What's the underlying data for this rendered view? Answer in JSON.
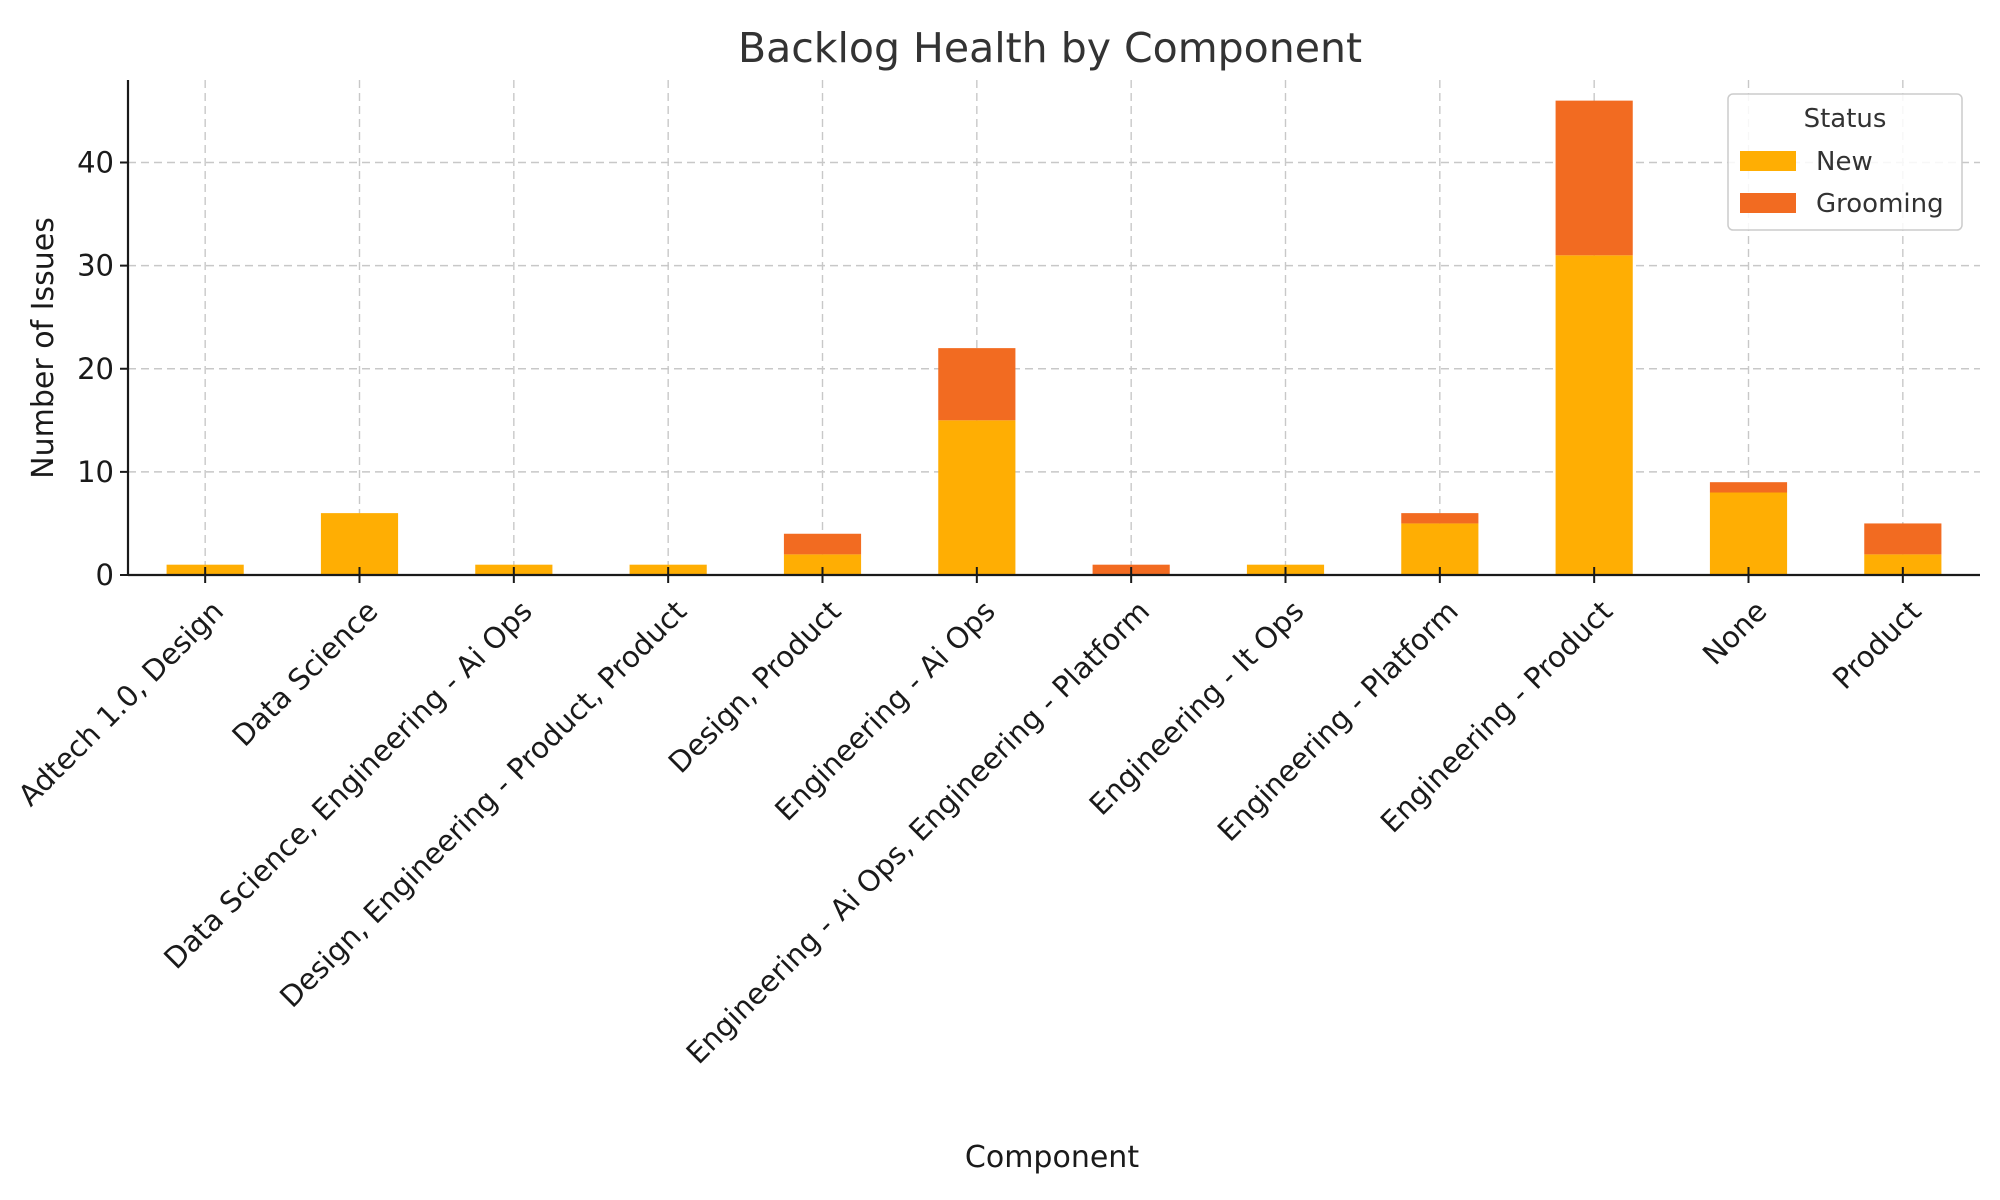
{
  "chart_data": {
    "type": "bar",
    "stacked": true,
    "title": "Backlog Health by Component",
    "xlabel": "Component",
    "ylabel": "Number of Issues",
    "ylim": [
      0,
      48
    ],
    "yticks": [
      0,
      10,
      20,
      30,
      40
    ],
    "grid": true,
    "categories": [
      "Adtech 1.0, Design",
      "Data Science",
      "Data Science, Engineering - Ai Ops",
      "Design, Engineering - Product, Product",
      "Design, Product",
      "Engineering - Ai Ops",
      "Engineering - Ai Ops, Engineering - Platform",
      "Engineering - It Ops",
      "Engineering - Platform",
      "Engineering - Product",
      "None",
      "Product"
    ],
    "series": [
      {
        "name": "New",
        "color": "#FFAE03",
        "values": [
          1,
          6,
          1,
          1,
          2,
          15,
          0,
          1,
          5,
          31,
          8,
          2
        ]
      },
      {
        "name": "Grooming",
        "color": "#F26B21",
        "values": [
          0,
          0,
          0,
          0,
          2,
          7,
          1,
          0,
          1,
          15,
          1,
          3
        ]
      }
    ],
    "legend": {
      "title": "Status",
      "position": "top-right"
    }
  }
}
